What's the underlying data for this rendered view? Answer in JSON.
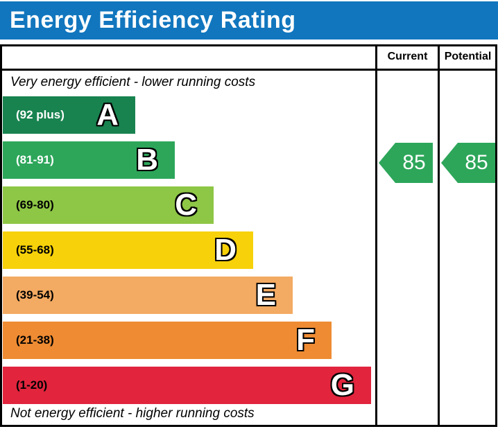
{
  "title": "Energy Efficiency Rating",
  "header": {
    "current": "Current",
    "potential": "Potential"
  },
  "notes": {
    "top": "Very energy efficient - lower running costs",
    "bottom": "Not energy efficient - higher running costs"
  },
  "colors": {
    "title_bar": "#1176BE",
    "border": "#000000",
    "arrow_green": "#2DA65A"
  },
  "chart_data": {
    "type": "bar",
    "title": "Energy Efficiency Rating",
    "bands": [
      {
        "letter": "A",
        "range_label": "(92 plus)",
        "range_min": 92,
        "range_max": 100,
        "color": "#18834F",
        "text_color": "#FFFFFF"
      },
      {
        "letter": "B",
        "range_label": "(81-91)",
        "range_min": 81,
        "range_max": 91,
        "color": "#2DA65A",
        "text_color": "#FFFFFF"
      },
      {
        "letter": "C",
        "range_label": "(69-80)",
        "range_min": 69,
        "range_max": 80,
        "color": "#8EC645",
        "text_color": "#000000"
      },
      {
        "letter": "D",
        "range_label": "(55-68)",
        "range_min": 55,
        "range_max": 68,
        "color": "#F7D10A",
        "text_color": "#000000"
      },
      {
        "letter": "E",
        "range_label": "(39-54)",
        "range_min": 39,
        "range_max": 54,
        "color": "#F3AA62",
        "text_color": "#000000"
      },
      {
        "letter": "F",
        "range_label": "(21-38)",
        "range_min": 21,
        "range_max": 38,
        "color": "#EE8B33",
        "text_color": "#000000"
      },
      {
        "letter": "G",
        "range_label": "(1-20)",
        "range_min": 1,
        "range_max": 20,
        "color": "#E2243D",
        "text_color": "#000000"
      }
    ],
    "current": {
      "value": 85,
      "band": "B",
      "color": "#2DA65A"
    },
    "potential": {
      "value": 85,
      "band": "B",
      "color": "#2DA65A"
    }
  }
}
